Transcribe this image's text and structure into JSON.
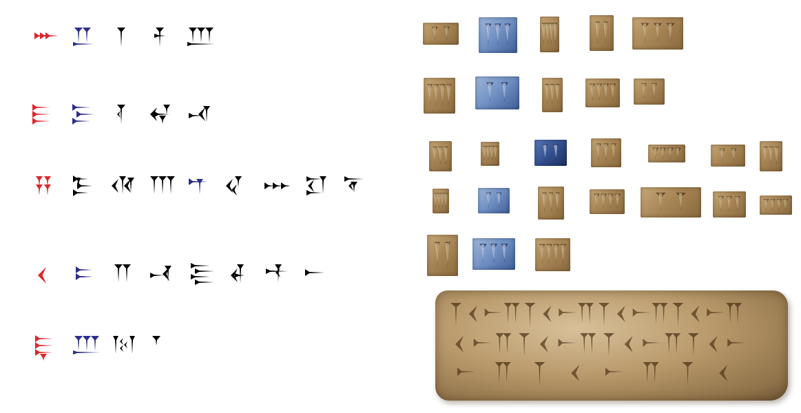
{
  "rows": [
    {
      "signs": [
        {
          "label": "ʼa",
          "color": "#e0242b",
          "icon": "wedges-right-3-icon"
        },
        {
          "label": "b",
          "color": "#2e2e8c",
          "icon": "wedges-down-2-with-base-icon"
        },
        {
          "label": "g",
          "color": "#000000",
          "icon": "vertical-wedge-icon"
        },
        {
          "label": "ḫ",
          "color": "#000000",
          "icon": "vertical-wedge-with-cross-icon"
        },
        {
          "label": "d",
          "color": "#000000",
          "icon": "wedges-down-3-with-base-icon"
        }
      ]
    },
    {
      "signs": [
        {
          "label": "h",
          "color": "#e0242b",
          "icon": "wedges-right-stack-3-icon"
        },
        {
          "label": "w",
          "color": "#2e2e8c",
          "icon": "wedges-right-stack-3-offset-icon"
        },
        {
          "label": "z",
          "color": "#000000",
          "icon": "vertical-wedge-notched-icon"
        },
        {
          "label": "ḥ",
          "color": "#000000",
          "icon": "winkelhaken-cross-icon"
        },
        {
          "label": "ṭ",
          "color": "#000000",
          "icon": "horizontal-with-winkelhaken-icon"
        }
      ]
    },
    {
      "signs": [
        {
          "label": "y",
          "color": "#e0242b",
          "icon": "wedges-down-2-double-icon"
        },
        {
          "label": "k",
          "color": "#000000",
          "icon": "wedges-right-3-with-vertical-icon"
        },
        {
          "label": "š",
          "color": "#000000",
          "icon": "winkelhaken-3-icon"
        },
        {
          "label": "l",
          "color": "#000000",
          "icon": "wedges-down-3-icon"
        },
        {
          "label": "m",
          "color": "#2e2e8c",
          "icon": "horizontal-with-vertical-icon"
        },
        {
          "label": "ḏ",
          "color": "#000000",
          "icon": "winkelhaken-with-vertical-icon"
        },
        {
          "label": "n",
          "color": "#000000",
          "icon": "wedges-right-row-3-icon"
        },
        {
          "label": "ẓ",
          "color": "#000000",
          "icon": "winkelhaken-box-icon"
        },
        {
          "label": "s",
          "color": "#000000",
          "icon": "winkelhaken-down-icon"
        }
      ]
    },
    {
      "signs": [
        {
          "label": "ʻ",
          "color": "#e0242b",
          "icon": "winkelhaken-icon"
        },
        {
          "label": "p",
          "color": "#2e2e8c",
          "icon": "wedges-right-2-with-base-icon"
        },
        {
          "label": "ṣ",
          "color": "#000000",
          "icon": "wedges-down-2-icon"
        },
        {
          "label": "q",
          "color": "#000000",
          "icon": "horizontal-with-winkelhaken-right-icon"
        },
        {
          "label": "r",
          "color": "#000000",
          "icon": "wedges-right-stack-5-icon"
        },
        {
          "label": "ṯ",
          "color": "#000000",
          "icon": "winkelhaken-crossed-icon"
        },
        {
          "label": "ġ",
          "color": "#000000",
          "icon": "horizontal-with-vertical-cross-icon"
        },
        {
          "label": "t",
          "color": "#000000",
          "icon": "horizontal-wedge-icon"
        }
      ]
    },
    {
      "signs": [
        {
          "label": "ʼi",
          "color": "#e0242b",
          "icon": "wedges-right-stack-3-with-down-icon"
        },
        {
          "label": "ʼu",
          "color": "#2e2e8c",
          "icon": "wedges-down-3-with-base-icon"
        },
        {
          "label": "s₂",
          "color": "#000000",
          "icon": "zigzag-wedges-icon"
        },
        {
          "label": ".",
          "color": "#000000",
          "icon": "word-divider-icon"
        }
      ]
    }
  ],
  "photo_samples": [
    {
      "tone": "clay",
      "icon": "clay-sign-a-icon"
    },
    {
      "tone": "blue",
      "icon": "clay-sign-b-icon"
    },
    {
      "tone": "clay",
      "icon": "clay-sign-g-icon"
    },
    {
      "tone": "clay",
      "icon": "clay-sign-h-icon"
    },
    {
      "tone": "clay",
      "icon": "clay-sign-d-icon"
    },
    {
      "tone": "clay",
      "icon": "clay-sign-h2-icon"
    },
    {
      "tone": "blue",
      "icon": "clay-sign-w-icon"
    },
    {
      "tone": "clay",
      "icon": "clay-sign-z-icon"
    },
    {
      "tone": "clay",
      "icon": "clay-sign-hh-icon"
    },
    {
      "tone": "clay",
      "icon": "clay-sign-tt-icon"
    },
    {
      "tone": "clay",
      "icon": "clay-sign-y-icon"
    },
    {
      "tone": "clay",
      "icon": "clay-sign-k-icon"
    },
    {
      "tone": "darkblue",
      "icon": "clay-sign-m-icon"
    },
    {
      "tone": "clay",
      "icon": "clay-sign-dd-icon"
    },
    {
      "tone": "clay",
      "icon": "clay-sign-n-icon"
    },
    {
      "tone": "clay",
      "icon": "clay-sign-zz-icon"
    },
    {
      "tone": "clay",
      "icon": "clay-sign-s-icon"
    },
    {
      "tone": "clay",
      "icon": "clay-sign-ayn-icon"
    },
    {
      "tone": "blue",
      "icon": "clay-sign-p-icon"
    },
    {
      "tone": "clay",
      "icon": "clay-sign-ss-icon"
    },
    {
      "tone": "clay",
      "icon": "clay-sign-q-icon"
    },
    {
      "tone": "clay",
      "icon": "clay-sign-r-icon"
    },
    {
      "tone": "clay",
      "icon": "clay-sign-th-icon"
    },
    {
      "tone": "clay",
      "icon": "clay-sign-gh-icon"
    },
    {
      "tone": "clay",
      "icon": "clay-sign-i-icon"
    },
    {
      "tone": "blue",
      "icon": "clay-sign-u-icon"
    },
    {
      "tone": "clay",
      "icon": "clay-sign-s2-icon"
    }
  ],
  "tablet": {
    "icon": "clay-tablet-icon"
  }
}
